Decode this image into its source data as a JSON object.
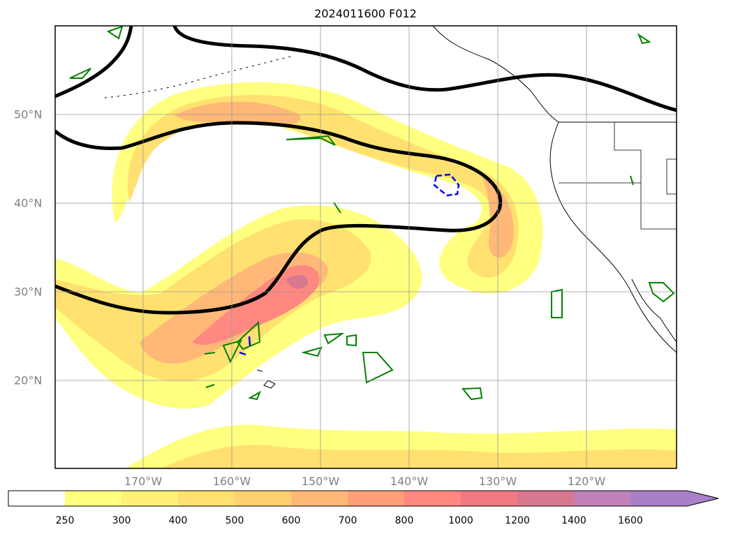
{
  "title": "2024011600 F012",
  "map": {
    "lon_ticks": [
      {
        "value": -170,
        "label": "170°W"
      },
      {
        "value": -160,
        "label": "160°W"
      },
      {
        "value": -150,
        "label": "150°W"
      },
      {
        "value": -140,
        "label": "140°W"
      },
      {
        "value": -130,
        "label": "130°W"
      },
      {
        "value": -120,
        "label": "120°W"
      }
    ],
    "lat_ticks": [
      {
        "value": 20,
        "label": "20°N"
      },
      {
        "value": 30,
        "label": "30°N"
      },
      {
        "value": 40,
        "label": "40°N"
      },
      {
        "value": 50,
        "label": "50°N"
      }
    ]
  },
  "colorbar": {
    "ticks": [
      "250",
      "300",
      "400",
      "500",
      "600",
      "700",
      "800",
      "1000",
      "1200",
      "1400",
      "1600"
    ],
    "colors": [
      "#ffffff",
      "#ffff80",
      "#fff07a",
      "#ffe070",
      "#ffd070",
      "#ffb878",
      "#ffa078",
      "#ff8880",
      "#f07880",
      "#d87890",
      "#c080b8",
      "#a880c8"
    ],
    "extend": "max"
  },
  "legend_colors": {
    "thick_contour": "#000000",
    "green_contour": "#008000",
    "blue_contour": "#0000ff",
    "coastline": "#000000"
  }
}
